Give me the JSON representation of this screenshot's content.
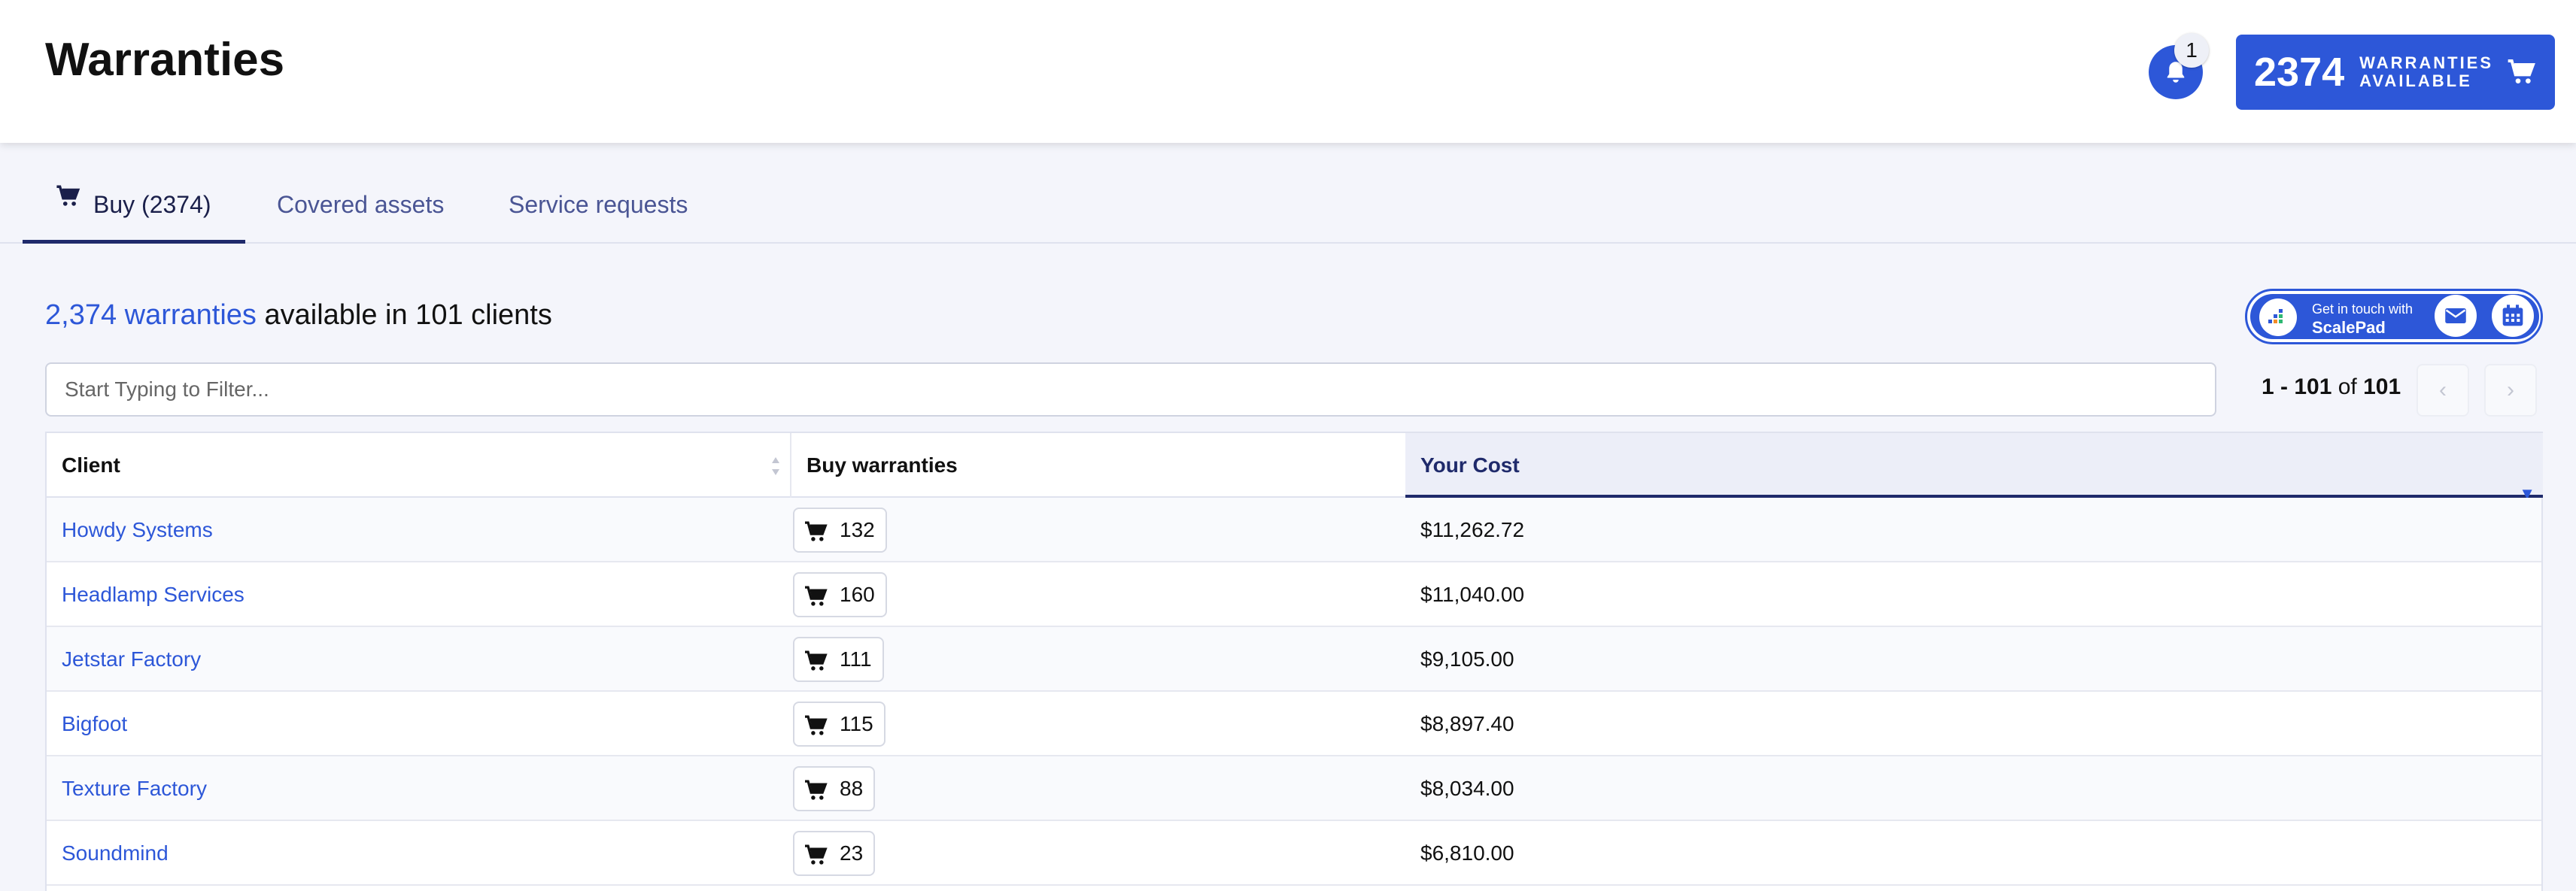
{
  "header": {
    "title": "Warranties",
    "notifications_count": "1",
    "available_count": "2374",
    "available_label_line1": "WARRANTIES",
    "available_label_line2": "AVAILABLE"
  },
  "tabs": [
    {
      "label": "Buy (2374)",
      "active": true
    },
    {
      "label": "Covered assets",
      "active": false
    },
    {
      "label": "Service requests",
      "active": false
    }
  ],
  "summary": {
    "link_text": "2,374 warranties",
    "rest_text": " available in 101 clients"
  },
  "scalepad": {
    "line1": "Get in touch with",
    "line2": "ScalePad"
  },
  "filter": {
    "placeholder": "Start Typing to Filter...",
    "value": ""
  },
  "pager": {
    "range": "1 - 101",
    "of": " of ",
    "total": "101",
    "prev_glyph": "‹",
    "next_glyph": "›"
  },
  "table": {
    "columns": [
      "Client",
      "Buy warranties",
      "Your Cost"
    ],
    "rows": [
      {
        "client": "Howdy Systems",
        "buy": "132",
        "cost": "$11,262.72"
      },
      {
        "client": "Headlamp Services",
        "buy": "160",
        "cost": "$11,040.00"
      },
      {
        "client": "Jetstar Factory",
        "buy": "111",
        "cost": "$9,105.00"
      },
      {
        "client": "Bigfoot",
        "buy": "115",
        "cost": "$8,897.40"
      },
      {
        "client": "Texture Factory",
        "buy": "88",
        "cost": "$8,034.00"
      },
      {
        "client": "Soundmind",
        "buy": "23",
        "cost": "$6,810.00"
      }
    ]
  },
  "colors": {
    "accent": "#2d57d8",
    "nav_dark": "#1f2a6b"
  }
}
